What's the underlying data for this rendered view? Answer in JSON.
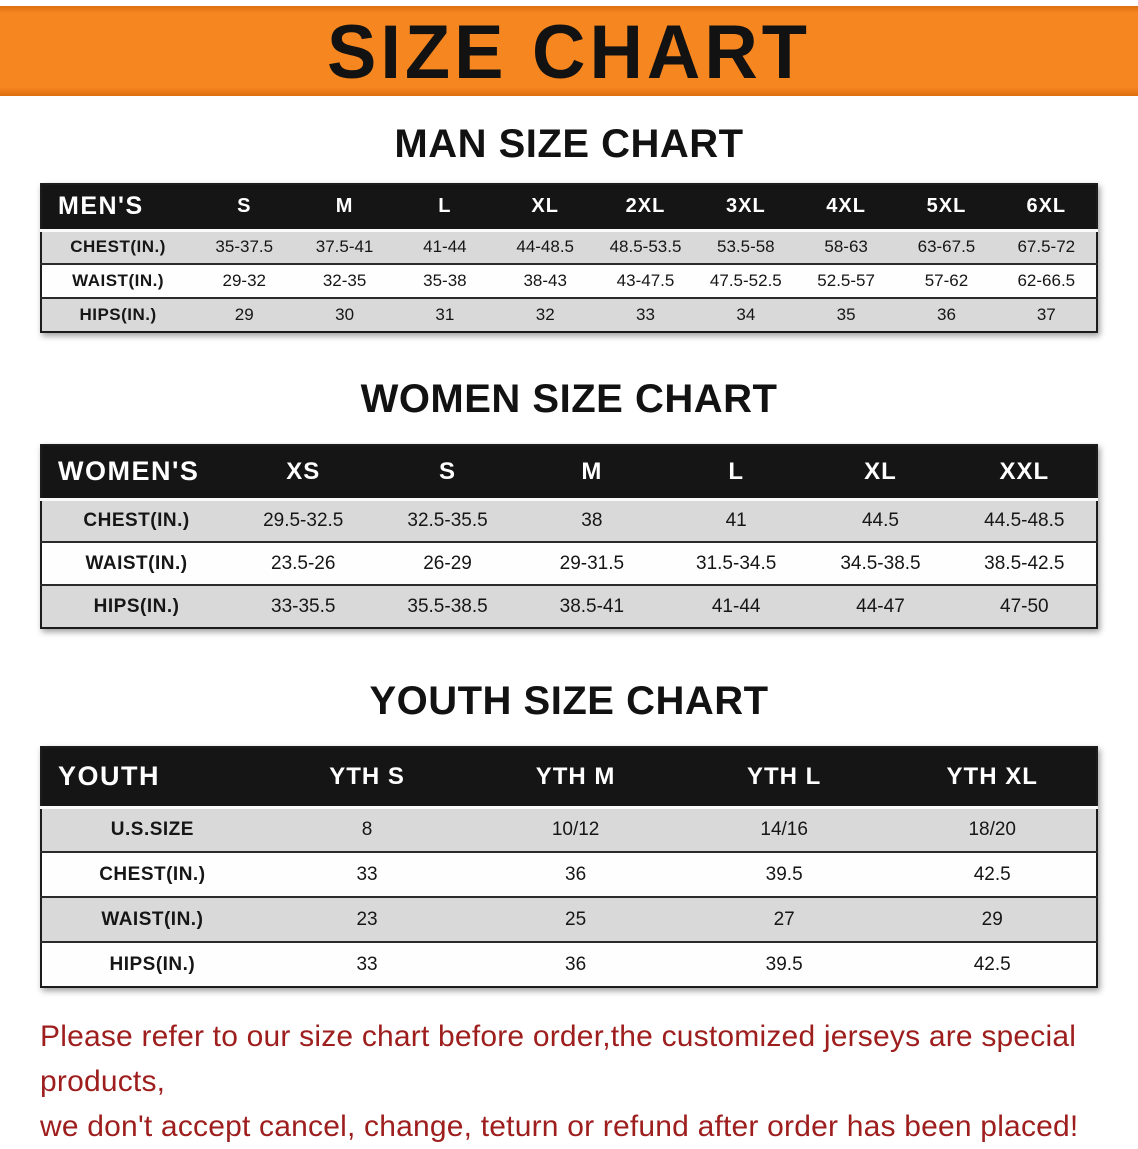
{
  "page": {
    "banner": {
      "title": "SIZE CHART"
    },
    "colors": {
      "banner_bg": "#f6861f",
      "header_bg": "#151515",
      "row_alt_bg": "#d9d9d9",
      "note_color": "#9e1d1d"
    }
  },
  "men": {
    "heading": "MAN SIZE CHART",
    "table": {
      "header": [
        "MEN'S",
        "S",
        "M",
        "L",
        "XL",
        "2XL",
        "3XL",
        "4XL",
        "5XL",
        "6XL"
      ],
      "rows": [
        [
          "CHEST(IN.)",
          "35-37.5",
          "37.5-41",
          "41-44",
          "44-48.5",
          "48.5-53.5",
          "53.5-58",
          "58-63",
          "63-67.5",
          "67.5-72"
        ],
        [
          "WAIST(IN.)",
          "29-32",
          "32-35",
          "35-38",
          "38-43",
          "43-47.5",
          "47.5-52.5",
          "52.5-57",
          "57-62",
          "62-66.5"
        ],
        [
          "HIPS(IN.)",
          "29",
          "30",
          "31",
          "32",
          "33",
          "34",
          "35",
          "36",
          "37"
        ]
      ]
    }
  },
  "women": {
    "heading": "WOMEN SIZE CHART",
    "table": {
      "header": [
        "WOMEN'S",
        "XS",
        "S",
        "M",
        "L",
        "XL",
        "XXL"
      ],
      "rows": [
        [
          "CHEST(IN.)",
          "29.5-32.5",
          "32.5-35.5",
          "38",
          "41",
          "44.5",
          "44.5-48.5"
        ],
        [
          "WAIST(IN.)",
          "23.5-26",
          "26-29",
          "29-31.5",
          "31.5-34.5",
          "34.5-38.5",
          "38.5-42.5"
        ],
        [
          "HIPS(IN.)",
          "33-35.5",
          "35.5-38.5",
          "38.5-41",
          "41-44",
          "44-47",
          "47-50"
        ]
      ]
    }
  },
  "youth": {
    "heading": "YOUTH SIZE CHART",
    "table": {
      "header": [
        "YOUTH",
        "YTH S",
        "YTH M",
        "YTH L",
        "YTH XL"
      ],
      "rows": [
        [
          "U.S.SIZE",
          "8",
          "10/12",
          "14/16",
          "18/20"
        ],
        [
          "CHEST(IN.)",
          "33",
          "36",
          "39.5",
          "42.5"
        ],
        [
          "WAIST(IN.)",
          "23",
          "25",
          "27",
          "29"
        ],
        [
          "HIPS(IN.)",
          "33",
          "36",
          "39.5",
          "42.5"
        ]
      ]
    }
  },
  "note": {
    "line1": "Please refer to our size chart before order,the customized jerseys are special products,",
    "line2": "we don't accept cancel, change, teturn or refund after order has been placed!"
  }
}
